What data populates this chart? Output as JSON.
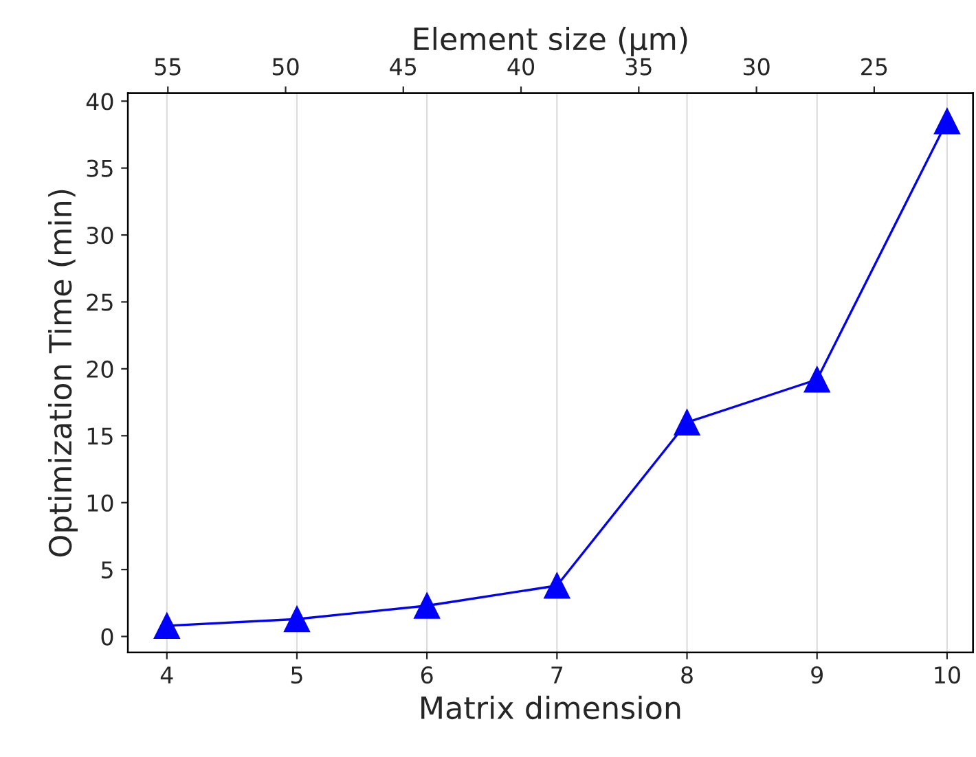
{
  "chart_data": {
    "type": "line",
    "xlabel": "Matrix dimension",
    "ylabel": "Optimization Time (min)",
    "x2label": "Element size (µm)",
    "x": [
      4,
      5,
      6,
      7,
      8,
      9,
      10
    ],
    "series": [
      {
        "color": "#0000ff",
        "values": [
          0.8,
          1.3,
          2.3,
          3.8,
          16.0,
          19.2,
          38.5
        ]
      }
    ],
    "xlim": [
      3.7,
      10.2
    ],
    "xticks": [
      4,
      5,
      6,
      7,
      8,
      9,
      10
    ],
    "ylim": [
      -1.2,
      40.6
    ],
    "yticks": [
      0,
      5,
      10,
      15,
      20,
      25,
      30,
      35,
      40
    ],
    "x2lim": [
      56.7,
      20.8
    ],
    "x2ticks": [
      55,
      50,
      45,
      40,
      35,
      30,
      25
    ],
    "grid": "x",
    "marker": "triangle",
    "line_style": "solid"
  }
}
